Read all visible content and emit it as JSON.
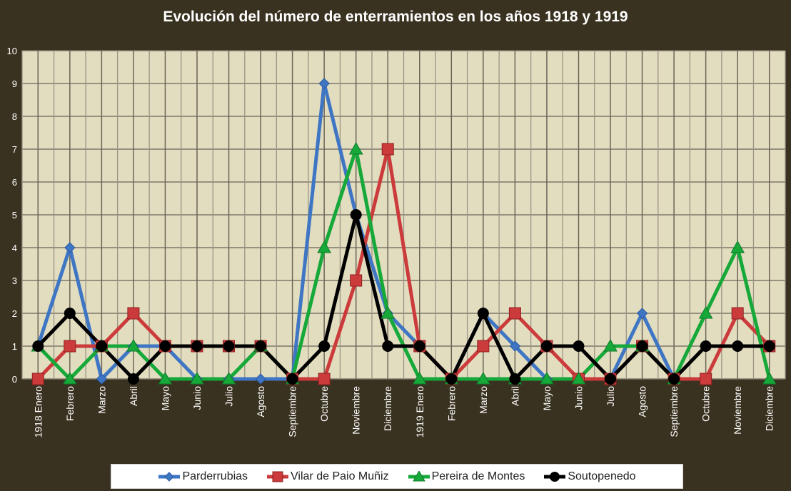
{
  "chart_data": {
    "type": "line",
    "title": "Evolución del número de enterramientos  en los años 1918 y 1919",
    "xlabel": "",
    "ylabel": "",
    "ylim": [
      0,
      10
    ],
    "yticks": [
      0,
      1,
      2,
      3,
      4,
      5,
      6,
      7,
      8,
      9,
      10
    ],
    "grid": true,
    "legend_position": "bottom",
    "categories": [
      "1918 Enero",
      "Febrero",
      "Marzo",
      "Abril",
      "Mayo",
      "Junio",
      "Julio",
      "Agosto",
      "Septiembre",
      "Octubre",
      "Noviembre",
      "Diciembre",
      "1919 Enero",
      "Febrero",
      "Marzo",
      "Abril",
      "Mayo",
      "Junio",
      "Julio",
      "Agosto",
      "Septiembre",
      "Octubre",
      "Noviembre",
      "Diciembre"
    ],
    "series": [
      {
        "name": "Parderrubias",
        "color": "#3f76c4",
        "marker": "diamond",
        "values": [
          1,
          4,
          0,
          1,
          1,
          0,
          0,
          0,
          0,
          9,
          5,
          2,
          1,
          0,
          2,
          1,
          0,
          0,
          0,
          2,
          0,
          null,
          null,
          null
        ]
      },
      {
        "name": "Vilar de Paio Muñiz",
        "color": "#cc3b3b",
        "marker": "square",
        "values": [
          0,
          1,
          1,
          2,
          1,
          1,
          1,
          1,
          0,
          0,
          3,
          7,
          1,
          0,
          1,
          2,
          1,
          0,
          0,
          1,
          0,
          0,
          2,
          1
        ]
      },
      {
        "name": "Pereira de Montes",
        "color": "#17a83a",
        "marker": "triangle",
        "values": [
          1,
          0,
          1,
          1,
          0,
          0,
          0,
          1,
          0,
          4,
          7,
          2,
          0,
          0,
          0,
          0,
          0,
          0,
          1,
          1,
          0,
          2,
          4,
          0
        ]
      },
      {
        "name": "Soutopenedo",
        "color": "#000000",
        "marker": "circle",
        "values": [
          1,
          2,
          1,
          0,
          1,
          1,
          1,
          1,
          0,
          1,
          5,
          1,
          1,
          0,
          2,
          0,
          1,
          1,
          0,
          1,
          0,
          1,
          1,
          1
        ]
      }
    ]
  },
  "colors": {
    "background": "#3a3220",
    "plot_background": "#e3ddc0",
    "gridline": "#7d7668",
    "axis_text": "#ffffff"
  }
}
